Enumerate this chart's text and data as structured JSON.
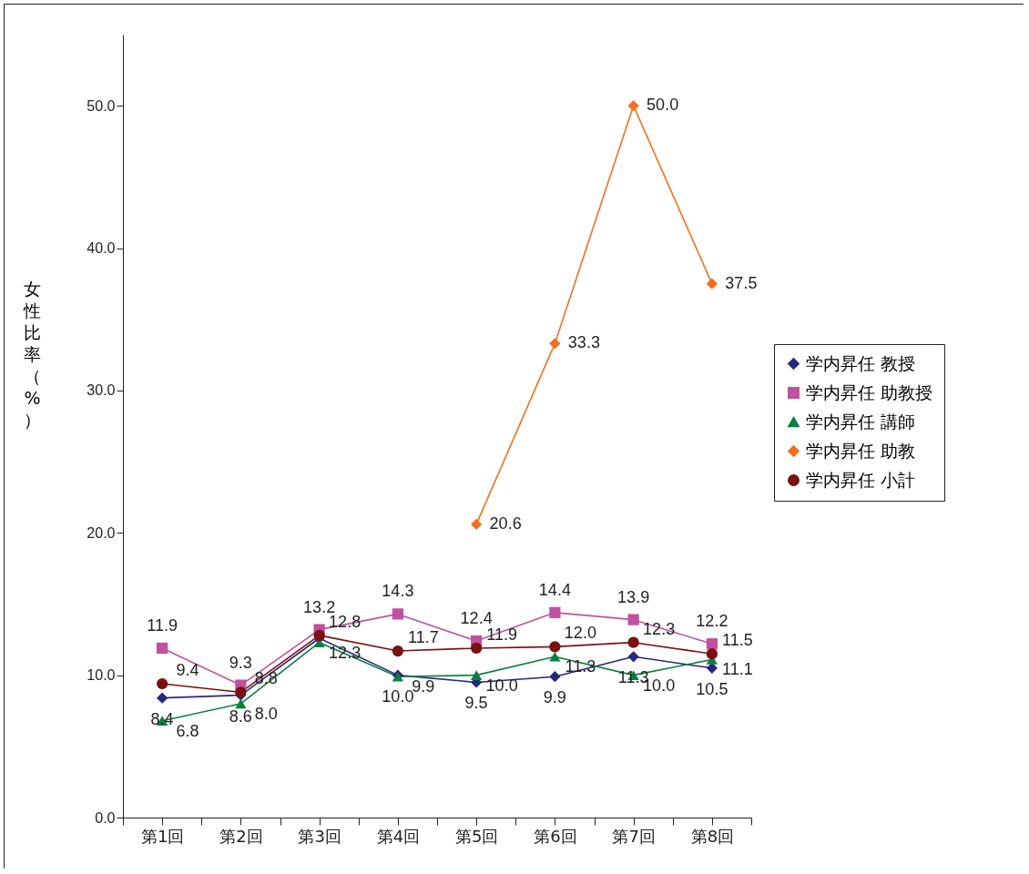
{
  "chart_data": {
    "type": "line",
    "ylabel": "女性比率（%）",
    "categories": [
      "第1回",
      "第2回",
      "第3回",
      "第4回",
      "第5回",
      "第6回",
      "第7回",
      "第8回"
    ],
    "ylim": [
      0,
      55
    ],
    "yticks": [
      {
        "value": 0,
        "label": "0.0"
      },
      {
        "value": 10,
        "label": "10.0"
      },
      {
        "value": 20,
        "label": "20.0"
      },
      {
        "value": 30,
        "label": "30.0"
      },
      {
        "value": 40,
        "label": "40.0"
      },
      {
        "value": 50,
        "label": "50.0"
      }
    ],
    "grid": false,
    "legend": "right",
    "series": [
      {
        "name": "学内昇任 教授",
        "color": "#27277a",
        "marker": "diamond",
        "values": [
          8.4,
          8.6,
          12.6,
          10.0,
          9.5,
          9.9,
          11.3,
          10.5
        ],
        "value_labels": [
          "8.4",
          "8.6",
          null,
          "10.0",
          "9.5",
          "9.9",
          "11.3",
          "10.5"
        ]
      },
      {
        "name": "学内昇任 助教授",
        "color": "#c050a0",
        "marker": "square",
        "values": [
          11.9,
          9.3,
          13.2,
          14.3,
          12.4,
          14.4,
          13.9,
          12.2
        ],
        "value_labels": [
          "11.9",
          "9.3",
          "13.2",
          "14.3",
          "12.4",
          "14.4",
          "13.9",
          "12.2"
        ]
      },
      {
        "name": "学内昇任 講師",
        "color": "#0a8040",
        "marker": "triangle",
        "values": [
          6.8,
          8.0,
          12.3,
          9.9,
          10.0,
          11.3,
          10.0,
          11.1
        ],
        "value_labels": [
          "6.8",
          "8.0",
          "12.3",
          "9.9",
          "10.0",
          "11.3",
          "10.0",
          "11.1"
        ]
      },
      {
        "name": "学内昇任 助教",
        "color": "#f07020",
        "marker": "diamond",
        "values": [
          null,
          null,
          null,
          null,
          20.6,
          33.3,
          50.0,
          37.5
        ],
        "value_labels": [
          null,
          null,
          null,
          null,
          "20.6",
          "33.3",
          "50.0",
          "37.5"
        ]
      },
      {
        "name": "学内昇任 小計",
        "color": "#7a1010",
        "marker": "circle",
        "values": [
          9.4,
          8.8,
          12.8,
          11.7,
          11.9,
          12.0,
          12.3,
          11.5
        ],
        "value_labels": [
          "9.4",
          "8.8",
          "12.8",
          "11.7",
          "11.9",
          "12.0",
          "12.3",
          "11.5"
        ]
      }
    ]
  }
}
